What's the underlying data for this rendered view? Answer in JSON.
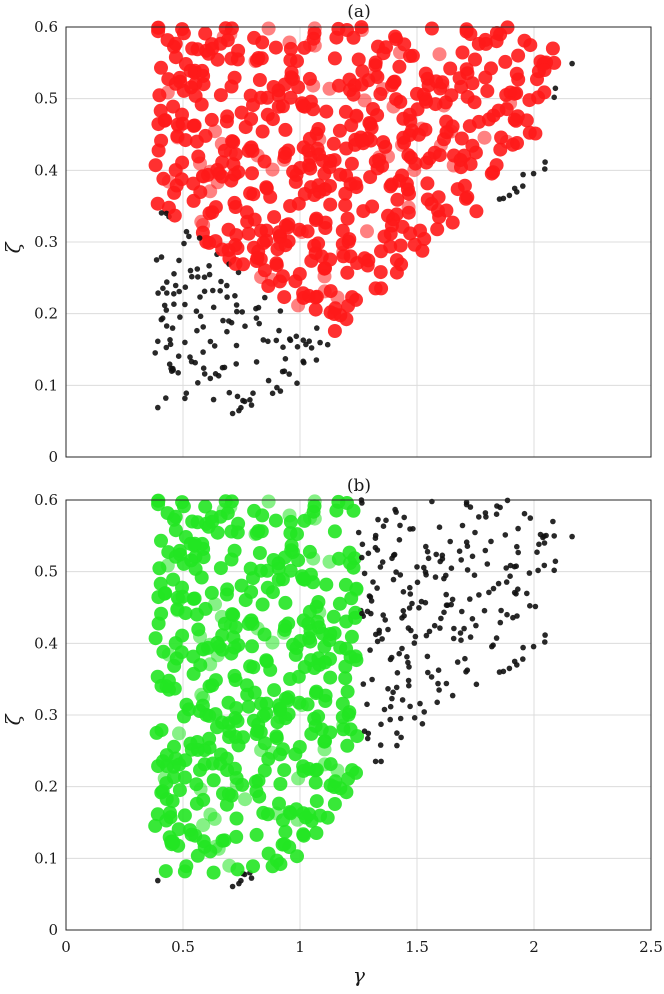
{
  "chart_data": [
    {
      "type": "scatter",
      "panel_label": "(a)",
      "xlabel": "",
      "ylabel": "ζ",
      "xlim": [
        0,
        2.5
      ],
      "ylim": [
        0,
        0.6
      ],
      "xticks": [],
      "yticks": [
        "0",
        "0.1",
        "0.2",
        "0.3",
        "0.4",
        "0.5",
        "0.6"
      ],
      "grid": true,
      "highlight_color": "#ff1a1a",
      "region": {
        "x_start": 0.38,
        "upper_cutoff": [
          [
            0.4,
            0.35
          ],
          [
            1.0,
            0.2
          ],
          [
            1.2,
            0.15
          ],
          [
            1.5,
            0.25
          ],
          [
            1.7,
            0.32
          ],
          [
            2.0,
            0.42
          ],
          [
            2.15,
            0.6
          ]
        ],
        "lower_cutoff": [
          [
            0.45,
            0.06
          ],
          [
            0.85,
            0.06
          ],
          [
            1.05,
            0.12
          ],
          [
            1.3,
            0.22
          ],
          [
            1.6,
            0.3
          ],
          [
            2.0,
            0.38
          ]
        ]
      },
      "seed": 7
    },
    {
      "type": "scatter",
      "panel_label": "(b)",
      "xlabel": "γ",
      "ylabel": "ζ",
      "xlim": [
        0,
        2.5
      ],
      "ylim": [
        0,
        0.6
      ],
      "xticks": [
        "0",
        "0.5",
        "1",
        "1.5",
        "2",
        "2.5"
      ],
      "yticks": [
        "0",
        "0.1",
        "0.2",
        "0.3",
        "0.4",
        "0.5",
        "0.6"
      ],
      "grid": true,
      "highlight_color": "#22e622",
      "region": {
        "x_start": 0.38,
        "x_end": 1.25
      },
      "seed": 7
    }
  ],
  "colors": {
    "background_points": "#111111",
    "grid": "#dcdcdc",
    "frame": "#262626"
  }
}
